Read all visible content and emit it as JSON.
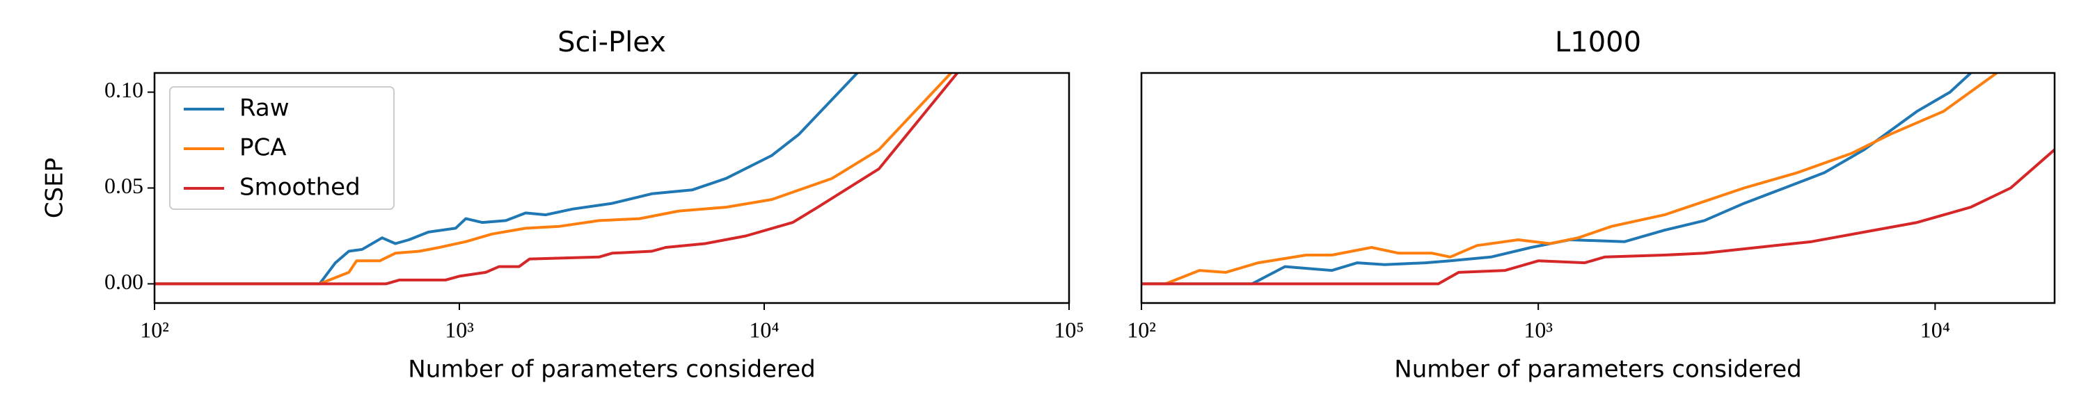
{
  "chart_data": [
    {
      "type": "line",
      "title": "Sci-Plex",
      "xlabel": "Number of parameters considered",
      "ylabel": "CSEP",
      "xscale": "log",
      "xlim": [
        100,
        100000
      ],
      "xticks": [
        {
          "value": 100,
          "label": "10²"
        },
        {
          "value": 1000,
          "label": "10³"
        },
        {
          "value": 10000,
          "label": "10⁴"
        },
        {
          "value": 100000,
          "label": "10⁵"
        }
      ],
      "ylim": [
        -0.01,
        0.11
      ],
      "yticks": [
        {
          "value": 0,
          "label": "0.00"
        },
        {
          "value": 0.05,
          "label": "0.05"
        },
        {
          "value": 0.1,
          "label": "0.10"
        }
      ],
      "legend": "upper left",
      "series": [
        {
          "name": "Raw",
          "color": "#1f77b4",
          "x": [
            100,
            348,
            392,
            434,
            480,
            558,
            617,
            683,
            792,
            972,
            1050,
            1188,
            1420,
            1650,
            1920,
            2350,
            3170,
            4280,
            5800,
            7500,
            10600,
            13000,
            20200
          ],
          "values": [
            0,
            0,
            0.011,
            0.017,
            0.018,
            0.024,
            0.021,
            0.023,
            0.027,
            0.029,
            0.034,
            0.032,
            0.033,
            0.037,
            0.036,
            0.039,
            0.042,
            0.047,
            0.049,
            0.055,
            0.067,
            0.078,
            0.11
          ]
        },
        {
          "name": "PCA",
          "color": "#ff7f0e",
          "x": [
            100,
            348,
            434,
            460,
            548,
            617,
            740,
            860,
            1050,
            1280,
            1650,
            2130,
            2870,
            3900,
            5250,
            7500,
            10600,
            16700,
            23800,
            41000
          ],
          "values": [
            0,
            0,
            0.006,
            0.012,
            0.012,
            0.016,
            0.017,
            0.019,
            0.022,
            0.026,
            0.029,
            0.03,
            0.033,
            0.034,
            0.038,
            0.04,
            0.044,
            0.055,
            0.07,
            0.11
          ]
        },
        {
          "name": "Smoothed",
          "color": "#d62728",
          "x": [
            100,
            575,
            635,
            900,
            1000,
            1220,
            1350,
            1570,
            1700,
            2870,
            3170,
            4280,
            4750,
            6400,
            8700,
            12400,
            15000,
            23800,
            43000
          ],
          "values": [
            0,
            0,
            0.002,
            0.002,
            0.004,
            0.006,
            0.009,
            0.009,
            0.013,
            0.014,
            0.016,
            0.017,
            0.019,
            0.021,
            0.025,
            0.032,
            0.04,
            0.06,
            0.11
          ]
        }
      ]
    },
    {
      "type": "line",
      "title": "L1000",
      "xlabel": "Number of parameters considered",
      "xscale": "log",
      "xlim": [
        100,
        20000
      ],
      "xticks": [
        {
          "value": 100,
          "label": "10²"
        },
        {
          "value": 1000,
          "label": "10³"
        },
        {
          "value": 10000,
          "label": "10⁴"
        }
      ],
      "ylim": [
        -0.01,
        0.11
      ],
      "series": [
        {
          "color": "#1f77b4",
          "x": [
            100,
            190,
            230,
            302,
            350,
            410,
            520,
            600,
            760,
            960,
            1200,
            1650,
            2080,
            2620,
            3300,
            4170,
            5260,
            6630,
            9000,
            10900,
            12300
          ],
          "values": [
            0,
            0,
            0.009,
            0.007,
            0.011,
            0.01,
            0.011,
            0.012,
            0.014,
            0.019,
            0.023,
            0.022,
            0.028,
            0.033,
            0.042,
            0.05,
            0.058,
            0.07,
            0.09,
            0.1,
            0.11
          ]
        },
        {
          "color": "#ff7f0e",
          "x": [
            100,
            115,
            140,
            163,
            197,
            260,
            302,
            380,
            445,
            540,
            600,
            700,
            890,
            1070,
            1260,
            1530,
            2080,
            2620,
            3300,
            4500,
            6150,
            7700,
            10500,
            14300
          ],
          "values": [
            0,
            0,
            0.007,
            0.006,
            0.011,
            0.015,
            0.015,
            0.019,
            0.016,
            0.016,
            0.014,
            0.02,
            0.023,
            0.021,
            0.024,
            0.03,
            0.036,
            0.043,
            0.05,
            0.058,
            0.068,
            0.078,
            0.09,
            0.11
          ]
        },
        {
          "color": "#d62728",
          "x": [
            100,
            560,
            630,
            825,
            1000,
            1310,
            1470,
            2080,
            2620,
            3570,
            4880,
            6630,
            9000,
            12300,
            15500,
            20000
          ],
          "values": [
            0,
            0,
            0.006,
            0.007,
            0.012,
            0.011,
            0.014,
            0.015,
            0.016,
            0.019,
            0.022,
            0.027,
            0.032,
            0.04,
            0.05,
            0.07
          ]
        }
      ]
    }
  ]
}
